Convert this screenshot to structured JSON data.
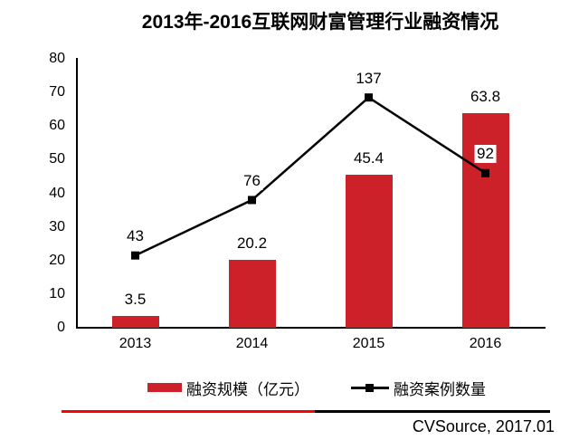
{
  "title": "2013年-2016互联网财富管理行业融资情况",
  "chart_data": {
    "type": "bar+line",
    "categories": [
      "2013",
      "2014",
      "2015",
      "2016"
    ],
    "series": [
      {
        "name": "融资规模（亿元）",
        "type": "bar",
        "axis": "primary",
        "color": "#CD2129",
        "values": [
          3.5,
          20.2,
          45.4,
          63.8
        ],
        "labels": [
          "3.5",
          "20.2",
          "45.4",
          "63.8"
        ]
      },
      {
        "name": "融资案例数量",
        "type": "line",
        "axis": "secondary",
        "color": "#000000",
        "marker": "square",
        "values": [
          43,
          76,
          137,
          92
        ],
        "labels": [
          "43",
          "76",
          "137",
          "92"
        ]
      }
    ],
    "y_axis_primary": {
      "min": 0,
      "max": 80,
      "step": 10,
      "ticks": [
        "0",
        "10",
        "20",
        "30",
        "40",
        "50",
        "60",
        "70",
        "80"
      ]
    },
    "y_axis_secondary": {
      "min": 0,
      "max": 160,
      "visible": false
    },
    "grid": false,
    "legend_position": "bottom"
  },
  "legend": {
    "items": [
      {
        "label": "融资规模（亿元）",
        "swatch": "bar",
        "color": "#CD2129"
      },
      {
        "label": "融资案例数量",
        "swatch": "line-marker",
        "color": "#000000"
      }
    ]
  },
  "footer": {
    "source": "CVSource, 2017.01",
    "divider_colors": [
      "#FF0000",
      "#000000"
    ]
  }
}
